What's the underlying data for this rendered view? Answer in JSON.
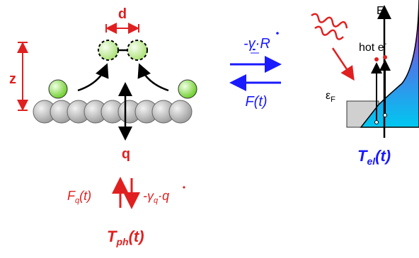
{
  "adsorbate": {
    "d_label": "d",
    "z_label": "z",
    "q_label": "q"
  },
  "coupling": {
    "friction": {
      "prefix": "-",
      "gamma": "γ",
      "dot": "·",
      "velocity": "R"
    },
    "force": "F(t)"
  },
  "electrons": {
    "energy_axis": "E",
    "hot_electrons": {
      "text": "hot e",
      "sup": "-"
    },
    "fermi": {
      "symbol": "ε",
      "sub": "F"
    },
    "temperature": {
      "symbol": "T",
      "sub": "el",
      "arg": "(t)"
    }
  },
  "phonons": {
    "force": {
      "symbol": "F",
      "sub": "q",
      "arg": "(t)"
    },
    "friction": {
      "prefix": "-γ",
      "sub": "q",
      "dot": "·",
      "velocity": "q"
    },
    "temperature": {
      "symbol": "T",
      "sub": "ph",
      "arg": "(t)"
    }
  }
}
